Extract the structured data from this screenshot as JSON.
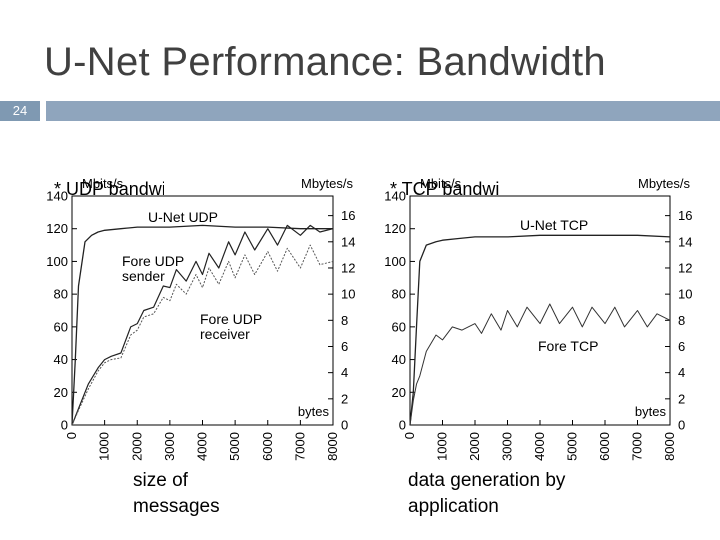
{
  "slide": {
    "title": "U-Net Performance: Bandwidth",
    "number": "24",
    "bullet_left": "* UDP bandwidth",
    "bullet_right": "* TCP bandwidth",
    "caption_left": "size of messages",
    "caption_right": "data generation by application",
    "colors": {
      "title": "#404040",
      "bar": "#8fa5bd",
      "number_box": "#7f99b2"
    }
  },
  "chart_data": [
    {
      "type": "line",
      "title": "",
      "xlabel": "bytes",
      "ylabel": "Mbits/s",
      "y2label": "Mbytes/s",
      "xlim": [
        0,
        8000
      ],
      "ylim": [
        0,
        140
      ],
      "y2lim": [
        0,
        17.5
      ],
      "xticks": [
        "0",
        "1000",
        "2000",
        "3000",
        "4000",
        "5000",
        "6000",
        "7000",
        "8000"
      ],
      "yticks": [
        "0",
        "20",
        "40",
        "60",
        "80",
        "100",
        "120",
        "140"
      ],
      "y2ticks": [
        "0",
        "2",
        "4",
        "6",
        "8",
        "10",
        "12",
        "14",
        "16"
      ],
      "grid": false,
      "series": [
        {
          "name": "U-Net UDP",
          "x": [
            0,
            100,
            200,
            400,
            600,
            800,
            1000,
            1500,
            2000,
            3000,
            4000,
            5000,
            6000,
            7000,
            8000
          ],
          "y": [
            0,
            40,
            85,
            112,
            116,
            118,
            119,
            120,
            121,
            121,
            122,
            121,
            121,
            120,
            120
          ]
        },
        {
          "name": "Fore UDP sender",
          "x": [
            0,
            200,
            500,
            800,
            1000,
            1200,
            1500,
            1800,
            2000,
            2200,
            2500,
            2800,
            3000,
            3200,
            3500,
            3800,
            4000,
            4200,
            4500,
            4800,
            5000,
            5300,
            5600,
            6000,
            6300,
            6600,
            7000,
            7300,
            7600,
            8000
          ],
          "y": [
            0,
            10,
            25,
            35,
            40,
            42,
            44,
            60,
            62,
            70,
            72,
            85,
            84,
            95,
            88,
            100,
            92,
            105,
            96,
            112,
            104,
            118,
            107,
            120,
            110,
            122,
            116,
            122,
            118,
            120
          ]
        },
        {
          "name": "Fore UDP receiver",
          "x": [
            0,
            200,
            500,
            800,
            1000,
            1200,
            1500,
            1800,
            2000,
            2200,
            2500,
            2800,
            3000,
            3200,
            3500,
            3800,
            4000,
            4200,
            4500,
            4800,
            5000,
            5300,
            5600,
            6000,
            6300,
            6600,
            7000,
            7300,
            7600,
            8000
          ],
          "y": [
            0,
            9,
            22,
            33,
            38,
            40,
            41,
            55,
            58,
            66,
            68,
            78,
            76,
            86,
            80,
            92,
            84,
            96,
            86,
            100,
            90,
            104,
            92,
            106,
            94,
            108,
            96,
            110,
            98,
            100
          ]
        }
      ],
      "annotations": [
        "U-Net UDP",
        "Fore UDP sender",
        "Fore UDP receiver"
      ]
    },
    {
      "type": "line",
      "title": "",
      "xlabel": "bytes",
      "ylabel": "Mbits/s",
      "y2label": "Mbytes/s",
      "xlim": [
        0,
        8000
      ],
      "ylim": [
        0,
        140
      ],
      "y2lim": [
        0,
        17.5
      ],
      "xticks": [
        "0",
        "1000",
        "2000",
        "3000",
        "4000",
        "5000",
        "6000",
        "7000",
        "8000"
      ],
      "yticks": [
        "0",
        "20",
        "40",
        "60",
        "80",
        "100",
        "120",
        "140"
      ],
      "y2ticks": [
        "0",
        "2",
        "4",
        "6",
        "8",
        "10",
        "12",
        "14",
        "16"
      ],
      "grid": false,
      "series": [
        {
          "name": "U-Net TCP",
          "x": [
            0,
            100,
            200,
            300,
            500,
            800,
            1000,
            1500,
            2000,
            3000,
            4000,
            5000,
            6000,
            7000,
            8000
          ],
          "y": [
            0,
            20,
            60,
            100,
            110,
            112,
            113,
            114,
            115,
            115,
            116,
            116,
            116,
            116,
            115
          ]
        },
        {
          "name": "Fore TCP",
          "x": [
            0,
            100,
            200,
            300,
            500,
            800,
            1000,
            1300,
            1600,
            2000,
            2200,
            2500,
            2800,
            3000,
            3300,
            3600,
            4000,
            4300,
            4600,
            5000,
            5300,
            5600,
            6000,
            6300,
            6600,
            7000,
            7300,
            7600,
            8000
          ],
          "y": [
            0,
            15,
            25,
            30,
            45,
            55,
            52,
            60,
            58,
            62,
            56,
            68,
            58,
            70,
            60,
            72,
            62,
            74,
            62,
            72,
            60,
            72,
            62,
            72,
            60,
            70,
            60,
            68,
            64
          ]
        }
      ],
      "annotations": [
        "U-Net TCP",
        "Fore TCP"
      ]
    }
  ]
}
